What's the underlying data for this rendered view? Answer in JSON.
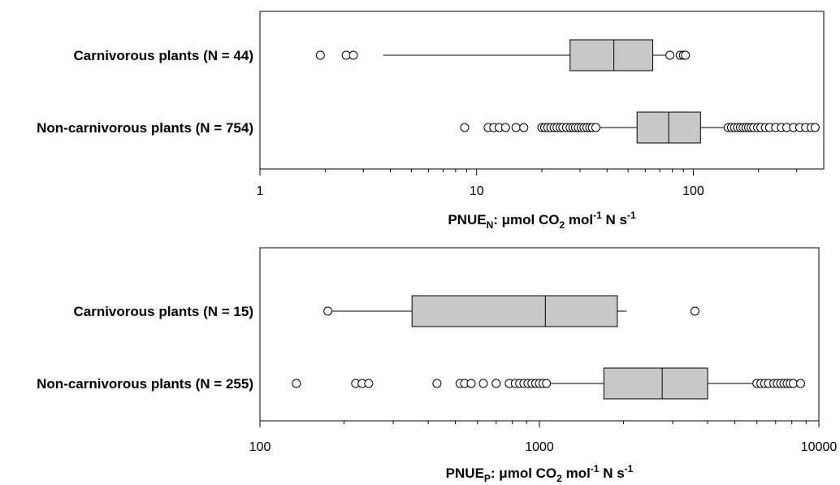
{
  "chart_data": [
    {
      "type": "boxplot",
      "orientation": "horizontal",
      "x_scale": "log",
      "xlim": [
        1,
        400
      ],
      "x_ticks": [
        "1",
        "10",
        "100"
      ],
      "x_label": {
        "main": "PNUE",
        "sub": "N",
        "unit_a": ": μmol CO",
        "unit_b": "2",
        "unit_c": " mol",
        "unit_d": "-1",
        "unit_e": " N s",
        "unit_f": "-1"
      },
      "series": [
        {
          "label": "Carnivorous plants (N = 44)",
          "whisker_low": 3.7,
          "q1": 27,
          "median": 43,
          "q3": 65,
          "whisker_high": 78,
          "outliers": [
            1.9,
            2.5,
            2.7,
            78,
            87,
            90,
            92
          ]
        },
        {
          "label": "Non-carnivorous plants (N = 754)",
          "whisker_low": 35,
          "q1": 55,
          "median": 77,
          "q3": 108,
          "whisker_high": 145,
          "outliers": [
            8.8,
            11.3,
            12,
            12.7,
            13.6,
            15.2,
            16.5,
            20,
            20.6,
            21.3,
            22,
            22.8,
            23.5,
            24.3,
            25,
            26,
            27,
            27.8,
            28.6,
            29.5,
            30.4,
            31.3,
            32.3,
            33.3,
            34.2,
            35.5,
            145,
            150,
            155,
            160,
            165,
            170,
            175,
            180,
            185,
            190,
            198,
            205,
            215,
            225,
            240,
            255,
            270,
            290,
            310,
            330,
            350,
            365
          ]
        }
      ]
    },
    {
      "type": "boxplot",
      "orientation": "horizontal",
      "x_scale": "log",
      "xlim": [
        100,
        10000
      ],
      "x_ticks": [
        "100",
        "1000",
        "10000"
      ],
      "x_label": {
        "main": "PNUE",
        "sub": "P",
        "unit_a": ": μmol CO",
        "unit_b": "2",
        "unit_c": " mol",
        "unit_d": "-1",
        "unit_e": " N s",
        "unit_f": "-1"
      },
      "series": [
        {
          "label": "Carnivorous plants (N = 15)",
          "whisker_low": 175,
          "q1": 350,
          "median": 1050,
          "q3": 1900,
          "whisker_high": 2050,
          "outliers": [
            175,
            3600
          ]
        },
        {
          "label": "Non-carnivorous plants (N = 255)",
          "whisker_low": 1100,
          "q1": 1700,
          "median": 2750,
          "q3": 4000,
          "whisker_high": 6000,
          "outliers": [
            135,
            220,
            232,
            245,
            430,
            520,
            540,
            570,
            630,
            700,
            780,
            820,
            850,
            880,
            910,
            940,
            970,
            1000,
            1030,
            1060,
            6000,
            6200,
            6400,
            6600,
            6900,
            7100,
            7300,
            7500,
            7700,
            7900,
            8100,
            8600
          ]
        }
      ]
    }
  ]
}
